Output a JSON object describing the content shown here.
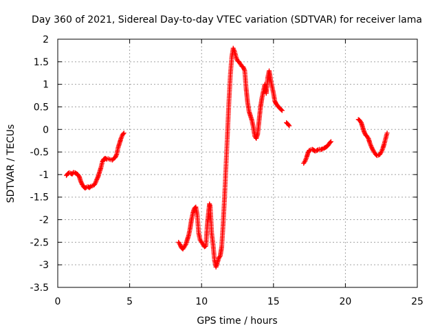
{
  "chart_data": {
    "type": "scatter",
    "title": "Day 360 of 2021, Sidereal Day-to-day VTEC variation (SDTVAR) for receiver lama",
    "xlabel": "GPS time / hours",
    "ylabel": "SDTVAR / TECUs",
    "xlim": [
      0,
      25
    ],
    "ylim": [
      -3.5,
      2
    ],
    "xticks": [
      0,
      5,
      10,
      15,
      20,
      25
    ],
    "xtick_labels": [
      "0",
      "5",
      "10",
      "15",
      "20",
      "25"
    ],
    "yticks": [
      -3.5,
      -3,
      -2.5,
      -2,
      -1.5,
      -1,
      -0.5,
      0,
      0.5,
      1,
      1.5,
      2
    ],
    "ytick_labels": [
      "-3.5",
      "-3",
      "-2.5",
      "-2",
      "-1.5",
      "-1",
      "-0.5",
      "0",
      "0.5",
      "1",
      "1.5",
      "2"
    ],
    "grid": true,
    "marker": "plus",
    "color": "#ff0000",
    "segments": [
      {
        "x": [
          0.6,
          0.7,
          0.8,
          0.9,
          1.0,
          1.1,
          1.2,
          1.3,
          1.4,
          1.5,
          1.6,
          1.7,
          1.8,
          1.9,
          2.0,
          2.1,
          2.2,
          2.3,
          2.4,
          2.5,
          2.6,
          2.7,
          2.8,
          2.9,
          3.0,
          3.1,
          3.2,
          3.3,
          3.4,
          3.5,
          3.6,
          3.7,
          3.8,
          3.9,
          4.0,
          4.1,
          4.2,
          4.3,
          4.4,
          4.5,
          4.6
        ],
        "y": [
          -1.02,
          -0.98,
          -0.96,
          -0.97,
          -0.99,
          -0.95,
          -0.96,
          -0.98,
          -1.0,
          -1.05,
          -1.15,
          -1.22,
          -1.27,
          -1.3,
          -1.28,
          -1.27,
          -1.29,
          -1.26,
          -1.25,
          -1.24,
          -1.2,
          -1.12,
          -1.05,
          -0.95,
          -0.85,
          -0.72,
          -0.66,
          -0.64,
          -0.66,
          -0.65,
          -0.66,
          -0.67,
          -0.68,
          -0.64,
          -0.62,
          -0.55,
          -0.4,
          -0.3,
          -0.2,
          -0.12,
          -0.08
        ]
      },
      {
        "x": [
          8.4,
          8.5,
          8.6,
          8.7,
          8.8,
          8.9,
          9.0,
          9.1,
          9.2,
          9.3,
          9.4,
          9.5,
          9.6,
          9.7,
          9.8,
          9.9,
          10.0,
          10.1,
          10.2,
          10.3,
          10.4,
          10.5,
          10.55,
          10.6,
          10.7,
          10.8,
          10.9,
          11.0,
          11.1,
          11.2,
          11.3,
          11.4,
          11.5,
          11.6,
          11.7,
          11.8,
          11.9,
          12.0,
          12.1,
          12.2,
          12.3,
          12.4,
          12.5,
          12.6,
          12.7,
          12.8,
          12.9,
          13.0,
          13.1,
          13.2,
          13.3,
          13.4,
          13.5,
          13.6,
          13.7,
          13.8,
          13.9,
          14.0,
          14.1,
          14.2,
          14.3,
          14.4,
          14.5,
          14.6,
          14.7,
          14.8,
          14.9,
          15.0,
          15.1,
          15.2,
          15.3,
          15.4,
          15.5,
          15.6
        ],
        "y": [
          -2.5,
          -2.55,
          -2.62,
          -2.65,
          -2.6,
          -2.55,
          -2.45,
          -2.35,
          -2.2,
          -2.0,
          -1.85,
          -1.75,
          -1.72,
          -1.9,
          -2.3,
          -2.45,
          -2.5,
          -2.55,
          -2.6,
          -2.58,
          -2.1,
          -1.8,
          -1.65,
          -1.7,
          -2.3,
          -2.55,
          -2.9,
          -3.05,
          -2.95,
          -2.85,
          -2.8,
          -2.6,
          -2.1,
          -1.5,
          -0.8,
          -0.1,
          0.6,
          1.2,
          1.6,
          1.8,
          1.72,
          1.6,
          1.52,
          1.5,
          1.45,
          1.4,
          1.38,
          1.3,
          0.9,
          0.6,
          0.4,
          0.3,
          0.2,
          0.05,
          -0.15,
          -0.2,
          -0.1,
          0.2,
          0.5,
          0.7,
          0.85,
          1.0,
          0.8,
          1.15,
          1.3,
          1.1,
          0.95,
          0.8,
          0.62,
          0.56,
          0.52,
          0.48,
          0.45,
          0.42
        ]
      },
      {
        "x": [
          15.9,
          16.0,
          16.1
        ],
        "y": [
          0.15,
          0.12,
          0.08
        ]
      },
      {
        "x": [
          17.1,
          17.2,
          17.3,
          17.4,
          17.5,
          17.6,
          17.7,
          17.8,
          17.9,
          18.0,
          18.1,
          18.2,
          18.3,
          18.4,
          18.5,
          18.6,
          18.7,
          18.8,
          18.9,
          19.0
        ],
        "y": [
          -0.75,
          -0.7,
          -0.62,
          -0.52,
          -0.46,
          -0.45,
          -0.44,
          -0.46,
          -0.48,
          -0.47,
          -0.45,
          -0.44,
          -0.45,
          -0.43,
          -0.42,
          -0.4,
          -0.38,
          -0.35,
          -0.3,
          -0.27
        ]
      },
      {
        "x": [
          20.9,
          21.0,
          21.1,
          21.2,
          21.3,
          21.4,
          21.5,
          21.6,
          21.7,
          21.8,
          21.9,
          22.0,
          22.1,
          22.2,
          22.3,
          22.4,
          22.5,
          22.6,
          22.7,
          22.8,
          22.9
        ],
        "y": [
          0.22,
          0.2,
          0.15,
          0.05,
          -0.05,
          -0.12,
          -0.15,
          -0.2,
          -0.3,
          -0.38,
          -0.45,
          -0.5,
          -0.55,
          -0.58,
          -0.57,
          -0.55,
          -0.5,
          -0.42,
          -0.32,
          -0.2,
          -0.08
        ]
      }
    ]
  }
}
